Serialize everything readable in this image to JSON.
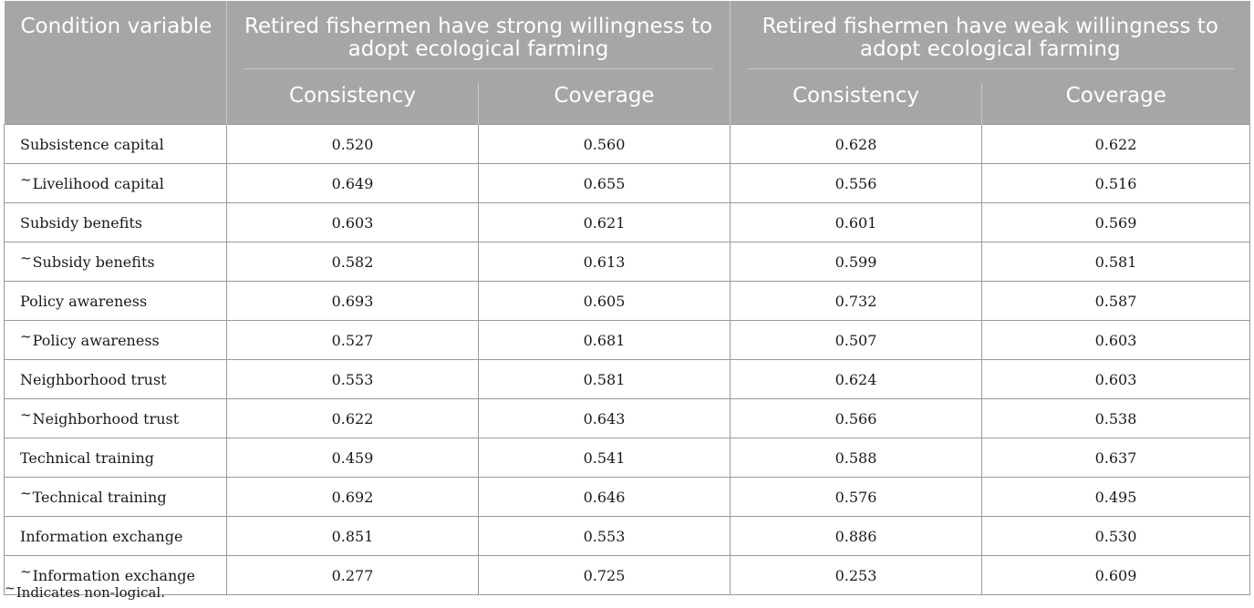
{
  "table": {
    "header": {
      "condition_variable": "Condition variable",
      "group_strong": "Retired fishermen have strong willingness to adopt ecological farming",
      "group_weak": "Retired fishermen have weak willingness to adopt ecological farming",
      "consistency": "Consistency",
      "coverage": "Coverage"
    },
    "rows": [
      {
        "negated": false,
        "label": "Subsistence capital",
        "strong_consistency": "0.520",
        "strong_coverage": "0.560",
        "weak_consistency": "0.628",
        "weak_coverage": "0.622"
      },
      {
        "negated": true,
        "label": "Livelihood capital",
        "strong_consistency": "0.649",
        "strong_coverage": "0.655",
        "weak_consistency": "0.556",
        "weak_coverage": "0.516"
      },
      {
        "negated": false,
        "label": "Subsidy benefits",
        "strong_consistency": "0.603",
        "strong_coverage": "0.621",
        "weak_consistency": "0.601",
        "weak_coverage": "0.569"
      },
      {
        "negated": true,
        "label": "Subsidy benefits",
        "strong_consistency": "0.582",
        "strong_coverage": "0.613",
        "weak_consistency": "0.599",
        "weak_coverage": "0.581"
      },
      {
        "negated": false,
        "label": "Policy awareness",
        "strong_consistency": "0.693",
        "strong_coverage": "0.605",
        "weak_consistency": "0.732",
        "weak_coverage": "0.587"
      },
      {
        "negated": true,
        "label": "Policy awareness",
        "strong_consistency": "0.527",
        "strong_coverage": "0.681",
        "weak_consistency": "0.507",
        "weak_coverage": "0.603"
      },
      {
        "negated": false,
        "label": "Neighborhood trust",
        "strong_consistency": "0.553",
        "strong_coverage": "0.581",
        "weak_consistency": "0.624",
        "weak_coverage": "0.603"
      },
      {
        "negated": true,
        "label": "Neighborhood trust",
        "strong_consistency": "0.622",
        "strong_coverage": "0.643",
        "weak_consistency": "0.566",
        "weak_coverage": "0.538"
      },
      {
        "negated": false,
        "label": "Technical training",
        "strong_consistency": "0.459",
        "strong_coverage": "0.541",
        "weak_consistency": "0.588",
        "weak_coverage": "0.637"
      },
      {
        "negated": true,
        "label": "Technical training",
        "strong_consistency": "0.692",
        "strong_coverage": "0.646",
        "weak_consistency": "0.576",
        "weak_coverage": "0.495"
      },
      {
        "negated": false,
        "label": "Information exchange",
        "strong_consistency": "0.851",
        "strong_coverage": "0.553",
        "weak_consistency": "0.886",
        "weak_coverage": "0.530"
      },
      {
        "negated": true,
        "label": "Information exchange",
        "strong_consistency": "0.277",
        "strong_coverage": "0.725",
        "weak_consistency": "0.253",
        "weak_coverage": "0.609"
      }
    ]
  },
  "footnote": {
    "symbol": "~",
    "text": "Indicates non-logical."
  }
}
